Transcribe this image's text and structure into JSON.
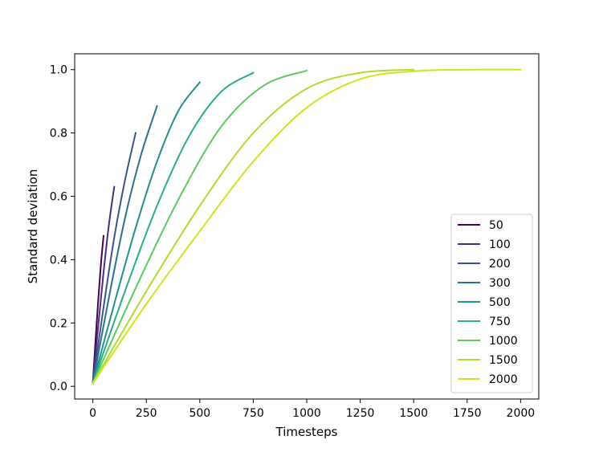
{
  "chart_data": {
    "type": "line",
    "xlabel": "Timesteps",
    "ylabel": "Standard deviation",
    "xlim": [
      -85,
      2085
    ],
    "ylim": [
      -0.04,
      1.05
    ],
    "xticks": [
      0,
      250,
      500,
      750,
      1000,
      1250,
      1500,
      1750,
      2000
    ],
    "yticks": [
      0.0,
      0.2,
      0.4,
      0.6,
      0.8,
      1.0
    ],
    "xtick_labels": [
      "0",
      "250",
      "500",
      "750",
      "1000",
      "1250",
      "1500",
      "1750",
      "2000"
    ],
    "ytick_labels": [
      "0.0",
      "0.2",
      "0.4",
      "0.6",
      "0.8",
      "1.0"
    ],
    "grid": false,
    "legend_position": "lower-right",
    "series": [
      {
        "name": "50",
        "color": "#440154",
        "x": [
          0,
          12,
          25,
          37,
          50
        ],
        "y": [
          0.01,
          0.14,
          0.27,
          0.38,
          0.475
        ]
      },
      {
        "name": "100",
        "color": "#472d7b",
        "x": [
          0,
          25,
          50,
          75,
          100
        ],
        "y": [
          0.01,
          0.19,
          0.36,
          0.51,
          0.63
        ]
      },
      {
        "name": "200",
        "color": "#3b528b",
        "x": [
          0,
          50,
          100,
          150,
          200
        ],
        "y": [
          0.01,
          0.25,
          0.47,
          0.65,
          0.8
        ]
      },
      {
        "name": "300",
        "color": "#2c728e",
        "x": [
          0,
          75,
          150,
          225,
          300
        ],
        "y": [
          0.01,
          0.28,
          0.53,
          0.73,
          0.885
        ]
      },
      {
        "name": "500",
        "color": "#21918c",
        "x": [
          0,
          100,
          200,
          300,
          400,
          500
        ],
        "y": [
          0.01,
          0.26,
          0.5,
          0.71,
          0.87,
          0.96
        ]
      },
      {
        "name": "750",
        "color": "#28ae80",
        "x": [
          0,
          150,
          300,
          450,
          600,
          750
        ],
        "y": [
          0.01,
          0.3,
          0.57,
          0.79,
          0.93,
          0.99
        ]
      },
      {
        "name": "1000",
        "color": "#5ec962",
        "x": [
          0,
          200,
          400,
          600,
          800,
          1000
        ],
        "y": [
          0.01,
          0.31,
          0.59,
          0.82,
          0.95,
          0.997
        ]
      },
      {
        "name": "1500",
        "color": "#addc30",
        "x": [
          0,
          250,
          500,
          750,
          1000,
          1250,
          1500
        ],
        "y": [
          0.01,
          0.3,
          0.57,
          0.8,
          0.94,
          0.99,
          1.0
        ]
      },
      {
        "name": "2000",
        "color": "#d2e21b",
        "x": [
          0,
          250,
          500,
          750,
          1000,
          1250,
          1500,
          1750,
          2000
        ],
        "y": [
          0.01,
          0.26,
          0.49,
          0.71,
          0.88,
          0.97,
          0.995,
          1.0,
          1.0
        ]
      }
    ]
  }
}
